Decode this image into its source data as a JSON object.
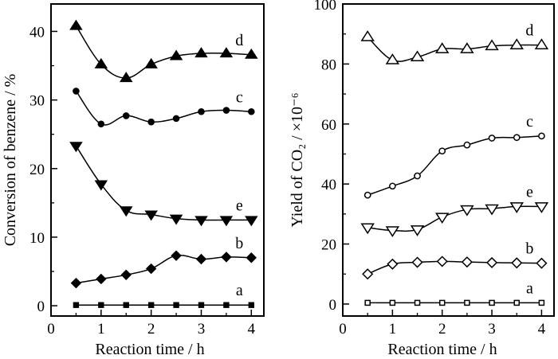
{
  "chart_data": [
    {
      "type": "line",
      "xlabel": "Reaction time / h",
      "ylabel": "Conversion of benzene / %",
      "xlim": [
        0,
        4.25
      ],
      "ylim": [
        -1.5,
        44
      ],
      "xticks": [
        0,
        1,
        2,
        3,
        4
      ],
      "yticks": [
        0,
        10,
        20,
        30,
        40
      ],
      "grid": false,
      "legend": "none",
      "series": [
        {
          "name": "d",
          "marker": "filled-triangle-up",
          "x": [
            0.5,
            1,
            1.5,
            2,
            2.5,
            3,
            3.5,
            4
          ],
          "values": [
            40.8,
            35.2,
            33.2,
            35.2,
            36.4,
            36.8,
            36.8,
            36.6
          ]
        },
        {
          "name": "c",
          "marker": "filled-circle",
          "x": [
            0.5,
            1,
            1.5,
            2,
            2.5,
            3,
            3.5,
            4
          ],
          "values": [
            31.3,
            26.5,
            27.7,
            26.8,
            27.3,
            28.3,
            28.5,
            28.3
          ]
        },
        {
          "name": "e",
          "marker": "filled-triangle-down",
          "x": [
            0.5,
            1,
            1.5,
            2,
            2.5,
            3,
            3.5,
            4
          ],
          "values": [
            23.3,
            17.7,
            13.9,
            13.3,
            12.7,
            12.5,
            12.5,
            12.5
          ]
        },
        {
          "name": "b",
          "marker": "filled-diamond",
          "x": [
            0.5,
            1,
            1.5,
            2,
            2.5,
            3,
            3.5,
            4
          ],
          "values": [
            3.3,
            3.9,
            4.5,
            5.4,
            7.3,
            6.8,
            7.1,
            7.0
          ]
        },
        {
          "name": "a",
          "marker": "filled-square",
          "x": [
            0.5,
            1,
            1.5,
            2,
            2.5,
            3,
            3.5,
            4
          ],
          "values": [
            0.1,
            0.1,
            0.1,
            0.1,
            0.1,
            0.1,
            0.1,
            0.1
          ]
        }
      ]
    },
    {
      "type": "line",
      "xlabel": "Reaction time / h",
      "ylabel": "Yield of CO₂ / ×10⁻⁶",
      "xlim": [
        0,
        4.25
      ],
      "ylim": [
        -4,
        100
      ],
      "xticks": [
        0,
        1,
        2,
        3,
        4
      ],
      "yticks": [
        0,
        20,
        40,
        60,
        80,
        100
      ],
      "grid": false,
      "legend": "none",
      "series": [
        {
          "name": "d",
          "marker": "open-triangle-up",
          "x": [
            0.5,
            1,
            1.5,
            2,
            2.5,
            3,
            3.5,
            4
          ],
          "values": [
            89.0,
            81.3,
            82.3,
            85.0,
            85.0,
            86.0,
            86.3,
            86.3
          ]
        },
        {
          "name": "c",
          "marker": "open-circle",
          "x": [
            0.5,
            1,
            1.5,
            2,
            2.5,
            3,
            3.5,
            4
          ],
          "values": [
            36.3,
            39.3,
            42.7,
            51.0,
            53.0,
            55.3,
            55.5,
            56.0
          ]
        },
        {
          "name": "e",
          "marker": "open-triangle-down",
          "x": [
            0.5,
            1,
            1.5,
            2,
            2.5,
            3,
            3.5,
            4
          ],
          "values": [
            25.5,
            24.5,
            24.8,
            29.0,
            31.5,
            31.8,
            32.5,
            32.5
          ]
        },
        {
          "name": "b",
          "marker": "open-diamond",
          "x": [
            0.5,
            1,
            1.5,
            2,
            2.5,
            3,
            3.5,
            4
          ],
          "values": [
            10.0,
            13.3,
            13.9,
            14.2,
            14.0,
            13.8,
            13.7,
            13.6
          ]
        },
        {
          "name": "a",
          "marker": "open-square",
          "x": [
            0.5,
            1,
            1.5,
            2,
            2.5,
            3,
            3.5,
            4
          ],
          "values": [
            0.4,
            0.4,
            0.4,
            0.4,
            0.4,
            0.4,
            0.4,
            0.4
          ]
        }
      ]
    }
  ]
}
